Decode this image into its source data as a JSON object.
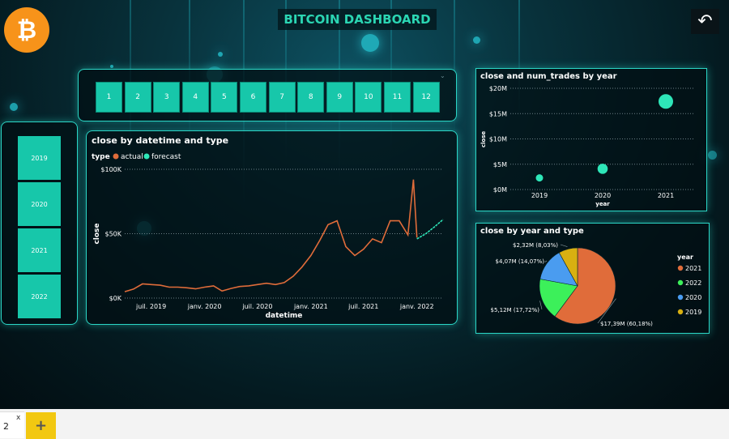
{
  "header": {
    "title": "BITCOIN DASHBOARD",
    "logo_icon": "bitcoin-logo-icon",
    "back_icon": "back-arrow-icon"
  },
  "filters": {
    "months": [
      "1",
      "2",
      "3",
      "4",
      "5",
      "6",
      "7",
      "8",
      "9",
      "10",
      "11",
      "12"
    ],
    "years": [
      "2019",
      "2020",
      "2021",
      "2022"
    ],
    "dropdown_icon": "chevron-down-icon"
  },
  "colors": {
    "accent": "#17c7aa",
    "actual": "#e06c3a",
    "forecast": "#2ee6b8"
  },
  "chart_data": [
    {
      "id": "close-line",
      "type": "line",
      "title": "close by datetime and type",
      "xlabel": "datetime",
      "ylabel": "close",
      "legend": {
        "title": "type",
        "position": "top-left",
        "entries": [
          "actual",
          "forecast"
        ]
      },
      "y_ticks": [
        "$0K",
        "$50K",
        "$100K"
      ],
      "ylim": [
        0,
        100000
      ],
      "x_ticks": [
        "juil. 2019",
        "janv. 2020",
        "juil. 2020",
        "janv. 2021",
        "juil. 2021",
        "janv. 2022"
      ],
      "series": [
        {
          "name": "actual",
          "x": [
            "2019-04",
            "2019-05",
            "2019-06",
            "2019-07",
            "2019-08",
            "2019-09",
            "2019-10",
            "2019-11",
            "2019-12",
            "2020-01",
            "2020-02",
            "2020-03",
            "2020-04",
            "2020-05",
            "2020-06",
            "2020-07",
            "2020-08",
            "2020-09",
            "2020-10",
            "2020-11",
            "2020-12",
            "2021-01",
            "2021-02",
            "2021-03",
            "2021-04",
            "2021-05",
            "2021-06",
            "2021-07",
            "2021-08",
            "2021-09",
            "2021-10",
            "2021-11",
            "2021-12",
            "2021-12-20",
            "2022-01"
          ],
          "y": [
            5000,
            7000,
            11000,
            10500,
            10000,
            8500,
            8500,
            8000,
            7200,
            8500,
            9500,
            5500,
            7500,
            9000,
            9500,
            10500,
            11500,
            10500,
            12000,
            17000,
            24000,
            33000,
            45000,
            57000,
            60000,
            40000,
            33000,
            38000,
            46000,
            43000,
            60000,
            60000,
            49000,
            92000,
            47000
          ]
        },
        {
          "name": "forecast",
          "x": [
            "2022-01",
            "2022-02",
            "2022-03",
            "2022-04"
          ],
          "y": [
            46000,
            50000,
            55000,
            61000
          ]
        }
      ]
    },
    {
      "id": "trades-scatter",
      "type": "scatter",
      "title": "close and num_trades by year",
      "xlabel": "year",
      "ylabel": "close",
      "categories": [
        "2019",
        "2020",
        "2021"
      ],
      "y_ticks": [
        "$0M",
        "$5M",
        "$10M",
        "$15M",
        "$20M"
      ],
      "ylim": [
        0,
        20000000
      ],
      "values": [
        2300000,
        4100000,
        17400000
      ],
      "num_trades_relative": [
        1,
        1.4,
        2
      ]
    },
    {
      "id": "year-pie",
      "type": "pie",
      "title": "close by year and type",
      "legend": {
        "title": "year",
        "position": "right",
        "entries": [
          "2021",
          "2022",
          "2020",
          "2019"
        ]
      },
      "slices": [
        {
          "name": "2021",
          "value": 17.39,
          "label": "$17,39M (60,18%)",
          "color": "#e06c3a"
        },
        {
          "name": "2022",
          "value": 5.12,
          "label": "$5,12M (17,72%)",
          "color": "#3cf05a"
        },
        {
          "name": "2020",
          "value": 4.07,
          "label": "$4,07M (14,07%)",
          "color": "#4a9cf0"
        },
        {
          "name": "2019",
          "value": 2.32,
          "label": "$2,32M (8,03%)",
          "color": "#d8b011"
        }
      ]
    }
  ],
  "tabs": {
    "page_label": "2",
    "close_glyph": "x",
    "add_glyph": "+"
  }
}
